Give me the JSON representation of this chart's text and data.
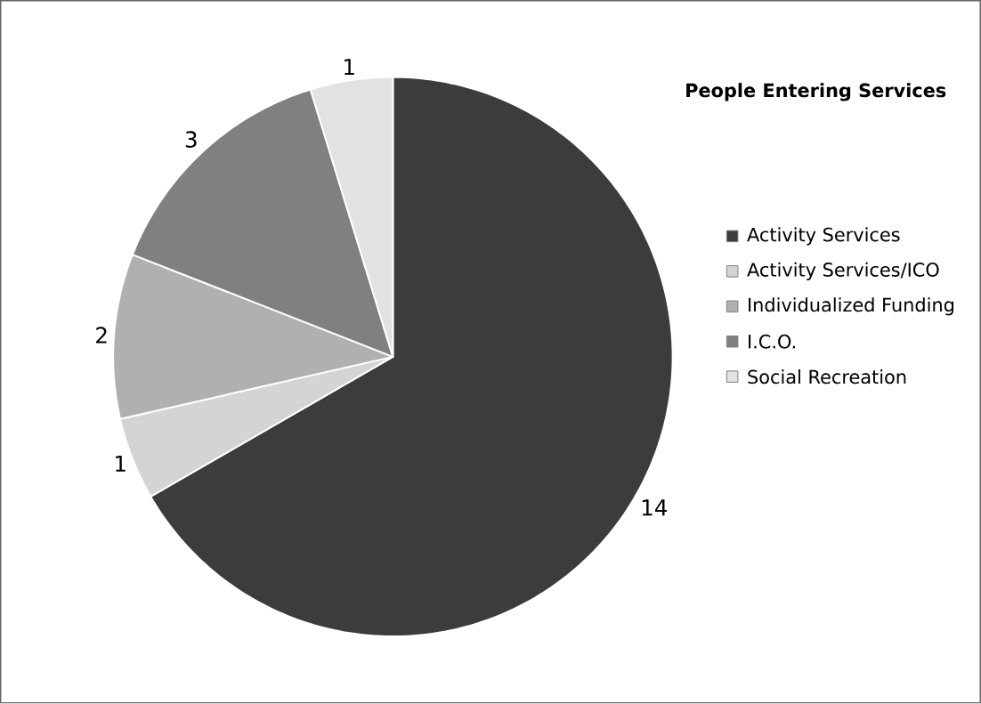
{
  "chart_data": {
    "type": "pie",
    "title": "People Entering Services",
    "categories": [
      "Activity Services",
      "Activity Services/ICO",
      "Individualized Funding",
      "I.C.O.",
      "Social Recreation"
    ],
    "values": [
      14,
      1,
      2,
      3,
      1
    ],
    "colors": [
      "#3c3c3c",
      "#d4d4d4",
      "#b0b0b0",
      "#808080",
      "#e2e2e2"
    ],
    "data_labels": true,
    "legend": "right"
  }
}
